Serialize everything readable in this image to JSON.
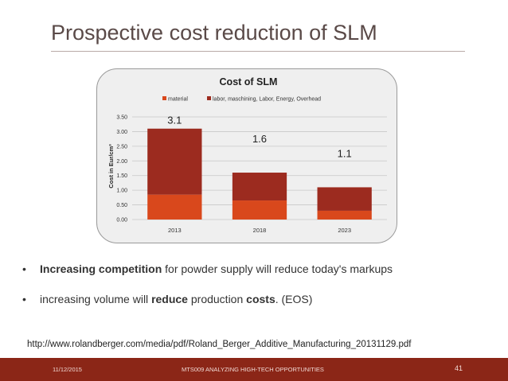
{
  "slide": {
    "title": "Prospective cost reduction of SLM",
    "bullets": [
      {
        "bold": "Increasing competition",
        "rest": " for powder supply will reduce today's markups"
      },
      {
        "pre": "increasing volume will ",
        "bold": "reduce",
        "mid": " production ",
        "bold2": "costs",
        "post": ". (EOS)"
      }
    ],
    "source": "http://www.rolandberger.com/media/pdf/Roland_Berger_Additive_Manufacturing_20131129.pdf",
    "footer": {
      "date": "11/12/2015",
      "center": "MTS009 ANALYZING HIGH-TECH OPPORTUNITIES",
      "page": "41"
    }
  },
  "chart_data": {
    "type": "bar",
    "stacked": true,
    "title": "Cost of SLM",
    "ylabel": "Cost in Eur/cm³",
    "xlabel": "",
    "categories": [
      "2013",
      "2018",
      "2023"
    ],
    "series": [
      {
        "name": "material",
        "values": [
          0.85,
          0.65,
          0.3
        ],
        "color": "#d9481c"
      },
      {
        "name": "labor, maschining, Labor, Energy, Overhead",
        "values": [
          2.25,
          0.95,
          0.8
        ],
        "color": "#9c2b1f"
      }
    ],
    "totals": [
      "3.1",
      "1.6",
      "1.1"
    ],
    "ylim": [
      0,
      3.5
    ],
    "yticks": [
      "0.00",
      "0.50",
      "1.00",
      "1.50",
      "2.00",
      "2.50",
      "3.00",
      "3.50"
    ],
    "grid": true,
    "legend": "top"
  }
}
